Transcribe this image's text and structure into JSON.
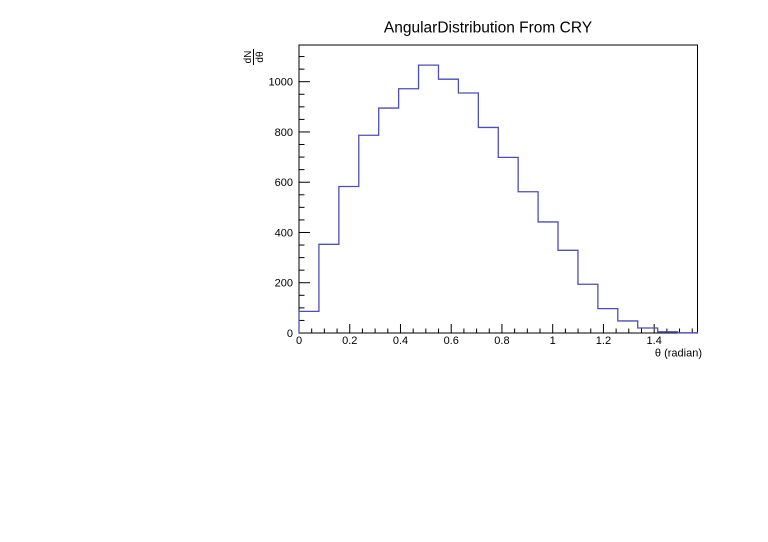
{
  "window": {
    "background": "#ffffff"
  },
  "chart": {
    "title": "AngularDistribution From CRY",
    "x_axis_title": "θ (radian)",
    "y_axis_numerator": "dN",
    "y_axis_denominator": "dθ"
  },
  "chart_data": {
    "type": "bar",
    "subtype": "step-histogram",
    "title": "AngularDistribution From CRY",
    "xlabel": "θ (radian)",
    "ylabel": "dN/dθ",
    "xlim": [
      0,
      1.5708
    ],
    "ylim": [
      0,
      1146
    ],
    "grid": false,
    "legend": false,
    "x_major_ticks": [
      0,
      0.2,
      0.4,
      0.6,
      0.8,
      1,
      1.2,
      1.4
    ],
    "x_tick_labels": [
      "0",
      "0.2",
      "0.4",
      "0.6",
      "0.8",
      "1",
      "1.2",
      "1.4"
    ],
    "x_minor_tick_step": 0.05,
    "y_major_ticks": [
      0,
      200,
      400,
      600,
      800,
      1000
    ],
    "y_tick_labels": [
      "0",
      "200",
      "400",
      "600",
      "800",
      "1000"
    ],
    "y_minor_tick_step": 50,
    "bin_edges": [
      0,
      0.0785,
      0.1571,
      0.2356,
      0.3142,
      0.3927,
      0.4712,
      0.5498,
      0.6283,
      0.7069,
      0.7854,
      0.8639,
      0.9425,
      1.021,
      1.0996,
      1.1781,
      1.2566,
      1.3352,
      1.4137,
      1.4923,
      1.5708
    ],
    "counts": [
      86,
      353,
      583,
      787,
      895,
      972,
      1066,
      1010,
      955,
      818,
      699,
      562,
      442,
      329,
      194,
      97,
      48,
      20,
      5,
      1
    ],
    "line_color": "#4d4dbb",
    "frame_color": "#000000",
    "text_color": "#000000"
  }
}
